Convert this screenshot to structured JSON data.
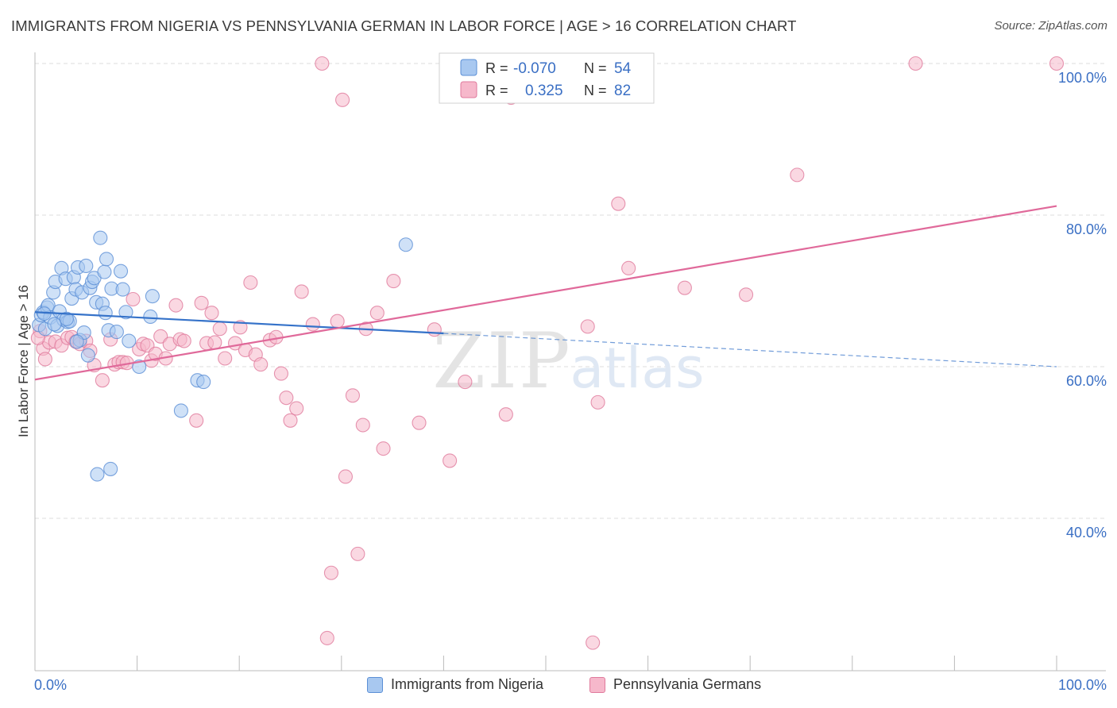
{
  "header": {
    "title": "IMMIGRANTS FROM NIGERIA VS PENNSYLVANIA GERMAN IN LABOR FORCE | AGE > 16 CORRELATION CHART",
    "source": "Source: ZipAtlas.com"
  },
  "watermark": {
    "zip": "ZIP",
    "atlas": "atlas"
  },
  "colors": {
    "blue_fill": "#a8c8f0",
    "blue_stroke": "#5b8fd6",
    "blue_line": "#3572c9",
    "pink_fill": "#f6b8cb",
    "pink_stroke": "#e07a9c",
    "pink_line": "#e0699a",
    "value_text": "#3a6fc4",
    "grid": "#dddddd"
  },
  "legend_box": {
    "rows": [
      {
        "r_label": "R =",
        "r_value": "-0.070",
        "n_label": "N =",
        "n_value": "54"
      },
      {
        "r_label": "R =",
        "r_value": "0.325",
        "n_label": "N =",
        "n_value": "82"
      }
    ]
  },
  "legend_bottom": {
    "series1": "Immigrants from Nigeria",
    "series2": "Pennsylvania Germans"
  },
  "chart_data": {
    "type": "scatter",
    "xlabel": "",
    "ylabel": "In Labor Force | Age > 16",
    "xlim": [
      0,
      100
    ],
    "ylim": [
      20,
      102
    ],
    "x_tick_labels": [
      "0.0%",
      "100.0%"
    ],
    "y_ticks": [
      40,
      60,
      80,
      100
    ],
    "y_tick_labels": [
      "40.0%",
      "60.0%",
      "80.0%",
      "100.0%"
    ],
    "grid": true,
    "legend_position": "top-center",
    "series": [
      {
        "name": "Immigrants from Nigeria",
        "r": -0.07,
        "n": 54,
        "trend": {
          "x0": 0,
          "y0": 67.2,
          "x1": 40,
          "y1": 64.4,
          "dash_to_x": 100,
          "dash_to_y": 60.0
        },
        "points": [
          [
            0.4,
            65.5
          ],
          [
            0.6,
            66.8
          ],
          [
            0.8,
            67.2
          ],
          [
            1.0,
            65.0
          ],
          [
            1.2,
            67.8
          ],
          [
            1.3,
            68.1
          ],
          [
            1.5,
            66.5
          ],
          [
            1.8,
            69.8
          ],
          [
            2.0,
            71.2
          ],
          [
            2.2,
            65.4
          ],
          [
            2.4,
            67.3
          ],
          [
            2.6,
            73.0
          ],
          [
            2.8,
            66.2
          ],
          [
            3.0,
            71.6
          ],
          [
            3.2,
            65.9
          ],
          [
            3.4,
            66.0
          ],
          [
            3.6,
            69.0
          ],
          [
            3.8,
            71.8
          ],
          [
            4.0,
            70.2
          ],
          [
            4.2,
            73.1
          ],
          [
            4.4,
            63.5
          ],
          [
            4.6,
            69.8
          ],
          [
            4.8,
            64.5
          ],
          [
            5.0,
            73.3
          ],
          [
            5.2,
            61.5
          ],
          [
            5.4,
            70.4
          ],
          [
            5.6,
            71.2
          ],
          [
            5.8,
            71.7
          ],
          [
            6.0,
            68.5
          ],
          [
            6.4,
            77.0
          ],
          [
            6.6,
            68.3
          ],
          [
            6.8,
            72.5
          ],
          [
            7.0,
            74.2
          ],
          [
            7.2,
            64.8
          ],
          [
            7.5,
            70.3
          ],
          [
            8.0,
            64.6
          ],
          [
            8.4,
            72.6
          ],
          [
            8.6,
            70.2
          ],
          [
            8.9,
            67.2
          ],
          [
            9.2,
            63.4
          ],
          [
            10.2,
            60.0
          ],
          [
            11.3,
            66.6
          ],
          [
            11.5,
            69.3
          ],
          [
            14.3,
            54.2
          ],
          [
            15.9,
            58.2
          ],
          [
            16.5,
            58.0
          ],
          [
            6.1,
            45.8
          ],
          [
            7.4,
            46.5
          ],
          [
            36.3,
            76.1
          ],
          [
            0.9,
            67.0
          ],
          [
            1.9,
            65.6
          ],
          [
            3.1,
            66.3
          ],
          [
            4.1,
            63.3
          ],
          [
            6.9,
            67.1
          ]
        ]
      },
      {
        "name": "Pennsylvania Germans",
        "r": 0.325,
        "n": 82,
        "trend": {
          "x0": 0,
          "y0": 58.3,
          "x1": 100,
          "y1": 81.2
        },
        "points": [
          [
            0.5,
            64.7
          ],
          [
            0.8,
            62.4
          ],
          [
            1.0,
            61.0
          ],
          [
            1.4,
            63.2
          ],
          [
            2.0,
            63.3
          ],
          [
            2.6,
            62.8
          ],
          [
            3.2,
            63.8
          ],
          [
            3.6,
            63.9
          ],
          [
            4.0,
            63.3
          ],
          [
            4.4,
            63.0
          ],
          [
            5.0,
            63.4
          ],
          [
            5.4,
            62.1
          ],
          [
            5.8,
            60.2
          ],
          [
            6.6,
            58.2
          ],
          [
            7.4,
            63.6
          ],
          [
            7.8,
            60.3
          ],
          [
            8.2,
            60.6
          ],
          [
            8.6,
            60.6
          ],
          [
            9.0,
            60.5
          ],
          [
            9.6,
            68.9
          ],
          [
            10.2,
            62.3
          ],
          [
            10.6,
            63.0
          ],
          [
            11.0,
            62.8
          ],
          [
            11.4,
            60.8
          ],
          [
            11.8,
            61.7
          ],
          [
            12.3,
            64.0
          ],
          [
            12.8,
            61.1
          ],
          [
            13.2,
            63.0
          ],
          [
            13.8,
            68.1
          ],
          [
            14.2,
            63.6
          ],
          [
            14.6,
            63.4
          ],
          [
            15.8,
            52.9
          ],
          [
            16.3,
            68.4
          ],
          [
            16.8,
            63.1
          ],
          [
            17.3,
            67.1
          ],
          [
            17.6,
            63.2
          ],
          [
            18.1,
            65.0
          ],
          [
            18.6,
            61.1
          ],
          [
            19.6,
            63.1
          ],
          [
            20.1,
            65.2
          ],
          [
            20.6,
            62.2
          ],
          [
            21.1,
            71.1
          ],
          [
            21.6,
            61.6
          ],
          [
            22.1,
            60.3
          ],
          [
            23.0,
            63.5
          ],
          [
            23.6,
            63.9
          ],
          [
            24.1,
            59.1
          ],
          [
            24.6,
            55.9
          ],
          [
            25.0,
            52.9
          ],
          [
            25.6,
            54.5
          ],
          [
            26.1,
            69.9
          ],
          [
            27.2,
            65.6
          ],
          [
            28.1,
            100.0
          ],
          [
            28.6,
            24.2
          ],
          [
            29.0,
            32.8
          ],
          [
            29.6,
            66.0
          ],
          [
            30.1,
            95.2
          ],
          [
            30.4,
            45.5
          ],
          [
            31.1,
            56.2
          ],
          [
            31.6,
            35.3
          ],
          [
            32.1,
            52.3
          ],
          [
            32.4,
            65.0
          ],
          [
            33.5,
            67.1
          ],
          [
            34.1,
            49.2
          ],
          [
            35.1,
            71.3
          ],
          [
            37.6,
            52.6
          ],
          [
            39.1,
            64.9
          ],
          [
            40.6,
            47.6
          ],
          [
            42.1,
            58.0
          ],
          [
            46.1,
            53.7
          ],
          [
            46.6,
            95.5
          ],
          [
            54.1,
            65.3
          ],
          [
            54.6,
            23.6
          ],
          [
            55.1,
            55.3
          ],
          [
            57.1,
            81.5
          ],
          [
            58.1,
            73.0
          ],
          [
            63.6,
            70.4
          ],
          [
            69.6,
            69.5
          ],
          [
            74.6,
            85.3
          ],
          [
            86.2,
            100.0
          ],
          [
            100.0,
            100.0
          ],
          [
            0.3,
            63.8
          ]
        ]
      }
    ]
  }
}
